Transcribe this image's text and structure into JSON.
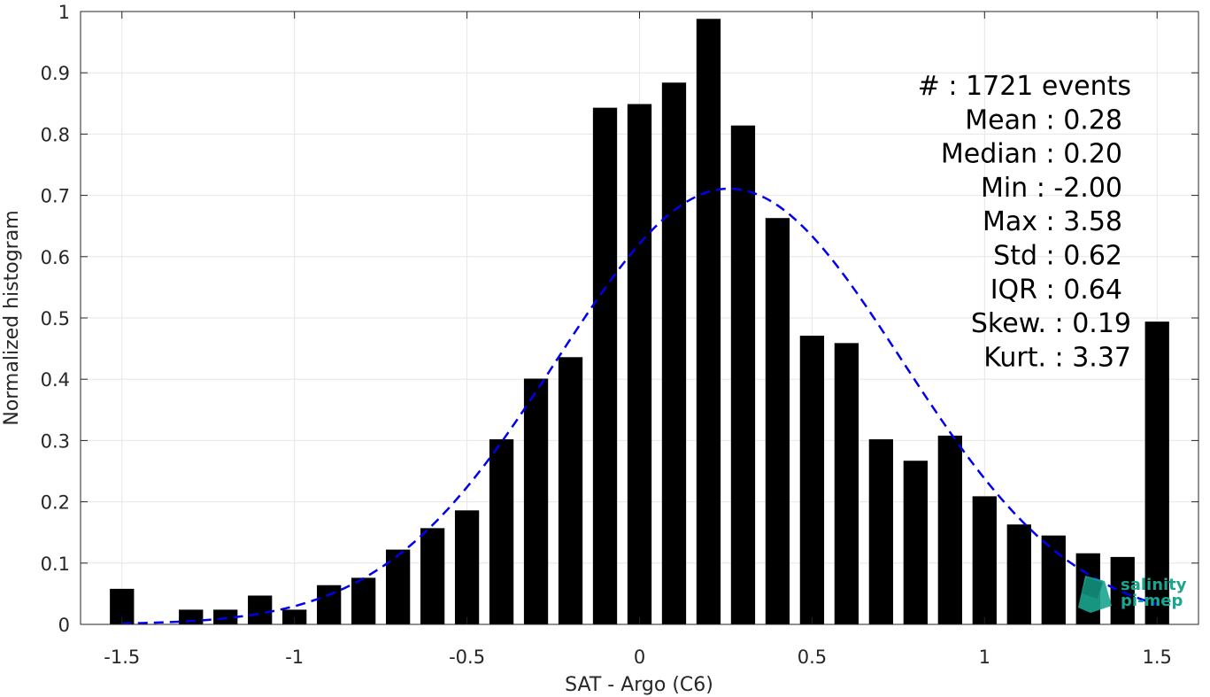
{
  "chart_data": {
    "type": "bar",
    "xlabel": "SAT - Argo (C6)",
    "ylabel": "Normalized histogram",
    "xlim": [
      -1.62,
      1.62
    ],
    "ylim": [
      0,
      1
    ],
    "grid": true,
    "xticks": [
      -1.5,
      -1,
      -0.5,
      0,
      0.5,
      1,
      1.5
    ],
    "xtick_labels": [
      "-1.5",
      "-1",
      "-0.5",
      "0",
      "0.5",
      "1",
      "1.5"
    ],
    "yticks": [
      0,
      0.1,
      0.2,
      0.3,
      0.4,
      0.5,
      0.6,
      0.7,
      0.8,
      0.9,
      1
    ],
    "ytick_labels": [
      "0",
      "0.1",
      "0.2",
      "0.3",
      "0.4",
      "0.5",
      "0.6",
      "0.7",
      "0.8",
      "0.9",
      "1"
    ],
    "bar_width": 0.07,
    "x": [
      -1.5,
      -1.4,
      -1.3,
      -1.2,
      -1.1,
      -1.0,
      -0.9,
      -0.8,
      -0.7,
      -0.6,
      -0.5,
      -0.4,
      -0.3,
      -0.2,
      -0.1,
      0.0,
      0.1,
      0.2,
      0.3,
      0.4,
      0.5,
      0.6,
      0.7,
      0.8,
      0.9,
      1.0,
      1.1,
      1.2,
      1.3,
      1.4,
      1.5
    ],
    "values": [
      0.058,
      0.0,
      0.024,
      0.024,
      0.047,
      0.024,
      0.064,
      0.076,
      0.122,
      0.157,
      0.186,
      0.302,
      0.401,
      0.436,
      0.843,
      0.849,
      0.884,
      0.988,
      0.814,
      0.663,
      0.471,
      0.459,
      0.302,
      0.267,
      0.308,
      0.209,
      0.163,
      0.145,
      0.116,
      0.11,
      0.494
    ],
    "bar_color": "#000000",
    "fit_curve": {
      "style": "dashed",
      "color": "#0000ee",
      "x_range": [
        -1.5,
        1.5
      ],
      "mean": 0.26,
      "std": 0.5,
      "peak": 0.711
    },
    "stats": [
      "#  : 1721 events",
      "Mean : 0.28",
      "Median : 0.20",
      "Min : -2.00",
      "Max : 3.58",
      "Std : 0.62",
      "IQR : 0.64",
      "Skew. : 0.19",
      "Kurt. : 3.37"
    ],
    "logo": {
      "line1": "salinity",
      "line2": "pi-mep",
      "color": "#1aa58e"
    }
  }
}
